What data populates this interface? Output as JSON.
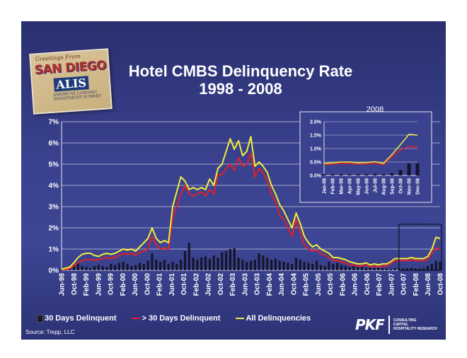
{
  "slide": {
    "title_line1": "Hotel CMBS Delinquency Rate",
    "title_line2": "1998 - 2008",
    "source": "Source: Trepp, LLC",
    "background_color": "#343b83",
    "postcard": {
      "greeting": "Greetings From",
      "city": "SAN DIEGO",
      "brand": "ALIS",
      "tagline": "AMERICAS LODGING INVESTMENT SUMMIT"
    },
    "logo": {
      "name": "PKF",
      "tagline_lines": [
        "CONSULTING",
        "CAPITAL",
        "HOSPITALITY RESEARCH"
      ]
    }
  },
  "chart_data": [
    {
      "type": "bar+line",
      "ylim": [
        0,
        7
      ],
      "yticks": [
        "0%",
        "1%",
        "2%",
        "3%",
        "4%",
        "5%",
        "6%",
        "7%"
      ],
      "x_tick_labels": [
        "Jun-98",
        "Oct-98",
        "Feb-99",
        "Jun-99",
        "Oct-99",
        "Feb-00",
        "Jun-00",
        "Oct-00",
        "Feb-01",
        "Jun-01",
        "Oct-01",
        "Feb-02",
        "Jun-02",
        "Oct-02",
        "Feb-03",
        "Jun-03",
        "Oct-03",
        "Feb-04",
        "Jun-04",
        "Oct-04",
        "Feb-05",
        "Jun-05",
        "Oct-05",
        "Feb-06",
        "Jun-06",
        "Oct-06",
        "Feb-07",
        "Jun-07",
        "Oct-07",
        "Feb-08",
        "Jun-08",
        "Oct-08"
      ],
      "grid": true,
      "legend_position": "bottom",
      "series_colors": {
        "bars": "#1a1a2a",
        "red": "#e0202a",
        "yellow": "#f2ee3a"
      },
      "series": [
        {
          "name": "30 Days Delinquent",
          "kind": "bar",
          "values": [
            0.05,
            0.02,
            0.1,
            0.25,
            0.35,
            0.2,
            0.15,
            0.1,
            0.2,
            0.25,
            0.2,
            0.15,
            0.3,
            0.25,
            0.35,
            0.4,
            0.3,
            0.2,
            0.25,
            0.35,
            0.3,
            0.45,
            0.8,
            0.5,
            0.4,
            0.5,
            0.3,
            0.4,
            0.3,
            0.5,
            0.9,
            1.3,
            0.6,
            0.5,
            0.6,
            0.65,
            0.55,
            0.7,
            0.6,
            0.85,
            0.9,
            1.0,
            1.05,
            0.6,
            0.5,
            0.4,
            0.45,
            0.5,
            0.8,
            0.7,
            0.6,
            0.5,
            0.55,
            0.45,
            0.4,
            0.35,
            0.3,
            0.6,
            0.5,
            0.4,
            0.35,
            0.3,
            0.45,
            0.25,
            0.2,
            0.4,
            0.3,
            0.35,
            0.25,
            0.2,
            0.15,
            0.2,
            0.15,
            0.15,
            0.1,
            0.15,
            0.1,
            0.12,
            0.1,
            0.08,
            0.06,
            0.1,
            0.1,
            0.08,
            0.1,
            0.12,
            0.1,
            0.08,
            0.1,
            0.2,
            0.3,
            0.45,
            0.4
          ]
        },
        {
          "name": "> 30 Days Delinquent",
          "kind": "line",
          "values": [
            0.02,
            0.05,
            0.08,
            0.2,
            0.35,
            0.45,
            0.5,
            0.5,
            0.48,
            0.5,
            0.55,
            0.6,
            0.55,
            0.6,
            0.7,
            0.8,
            0.75,
            0.8,
            0.7,
            0.85,
            0.9,
            1.0,
            1.6,
            1.2,
            1.0,
            1.05,
            1.0,
            2.5,
            3.0,
            3.6,
            4.0,
            3.6,
            3.5,
            3.6,
            3.7,
            3.5,
            3.8,
            3.6,
            4.5,
            4.5,
            4.8,
            5.0,
            4.7,
            5.3,
            4.9,
            5.0,
            5.5,
            4.4,
            4.8,
            4.6,
            4.2,
            3.6,
            3.2,
            2.6,
            2.4,
            2.0,
            1.6,
            2.4,
            1.8,
            1.2,
            1.0,
            0.9,
            0.95,
            0.8,
            0.7,
            0.6,
            0.45,
            0.45,
            0.4,
            0.35,
            0.25,
            0.25,
            0.2,
            0.2,
            0.25,
            0.15,
            0.2,
            0.15,
            0.2,
            0.2,
            0.3,
            0.45,
            0.45,
            0.45,
            0.45,
            0.5,
            0.45,
            0.45,
            0.45,
            0.5,
            0.8,
            1.05,
            1.0
          ]
        },
        {
          "name": "All Delinquencies",
          "kind": "line",
          "values": [
            0.05,
            0.1,
            0.15,
            0.35,
            0.6,
            0.75,
            0.8,
            0.8,
            0.7,
            0.65,
            0.75,
            0.8,
            0.75,
            0.8,
            0.9,
            1.0,
            0.95,
            1.0,
            0.9,
            1.1,
            1.3,
            1.5,
            2.0,
            1.5,
            1.3,
            1.4,
            1.3,
            3.0,
            3.7,
            4.4,
            4.2,
            3.8,
            3.9,
            3.8,
            3.9,
            3.8,
            4.3,
            4.0,
            4.8,
            5.0,
            5.6,
            6.2,
            5.7,
            6.1,
            5.4,
            5.6,
            6.3,
            4.9,
            5.1,
            4.9,
            4.6,
            4.0,
            3.6,
            3.1,
            2.8,
            2.4,
            2.0,
            2.7,
            2.2,
            1.6,
            1.3,
            1.1,
            1.2,
            1.0,
            0.9,
            0.8,
            0.6,
            0.6,
            0.55,
            0.5,
            0.4,
            0.35,
            0.3,
            0.3,
            0.35,
            0.25,
            0.3,
            0.25,
            0.3,
            0.3,
            0.4,
            0.55,
            0.55,
            0.55,
            0.55,
            0.6,
            0.55,
            0.55,
            0.55,
            0.65,
            1.0,
            1.55,
            1.5
          ]
        }
      ]
    },
    {
      "type": "bar+line",
      "title": "2008",
      "ylim": [
        0,
        2
      ],
      "yticks": [
        "0.0%",
        "0.5%",
        "1.0%",
        "1.5%",
        "2.0%"
      ],
      "x_tick_labels": [
        "Jan-08",
        "Feb-08",
        "Mar-08",
        "Apr-08",
        "May-08",
        "Jun-08",
        "Jul-08",
        "Aug-08",
        "Sep-08",
        "Oct-08",
        "Nov-08",
        "Dec-08"
      ],
      "series": [
        {
          "name": "30 Days Delinquent",
          "kind": "bar",
          "values": [
            0.05,
            0.05,
            0.05,
            0.04,
            0.05,
            0.05,
            0.06,
            0.05,
            0.08,
            0.2,
            0.45,
            0.45
          ]
        },
        {
          "name": "> 30 Days Delinquent",
          "kind": "line",
          "values": [
            0.4,
            0.42,
            0.45,
            0.45,
            0.42,
            0.43,
            0.45,
            0.4,
            0.7,
            0.95,
            1.08,
            1.05
          ]
        },
        {
          "name": "All Delinquencies",
          "kind": "line",
          "values": [
            0.45,
            0.47,
            0.5,
            0.5,
            0.47,
            0.48,
            0.51,
            0.45,
            0.78,
            1.15,
            1.53,
            1.5
          ]
        }
      ]
    }
  ]
}
